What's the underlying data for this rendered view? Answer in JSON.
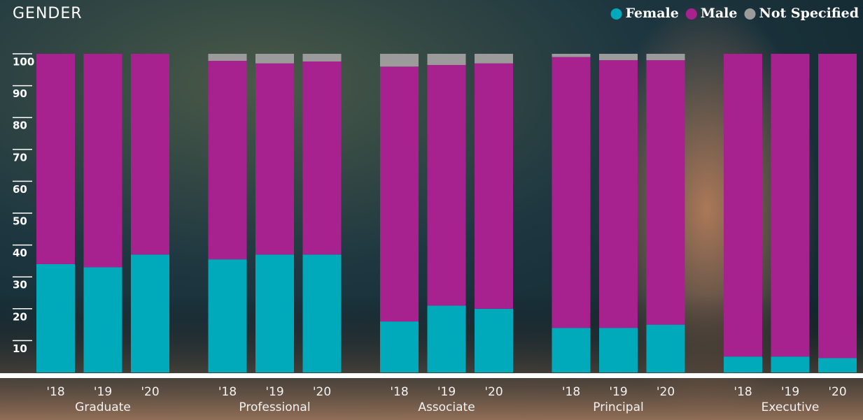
{
  "chart_data": {
    "type": "stacked_bar",
    "title": "GENDER",
    "categories": [
      "'18",
      "'19",
      "'20",
      "'18",
      "'19",
      "'20",
      "'18",
      "'19",
      "'20",
      "'18",
      "'19",
      "'20",
      "'18",
      "'19",
      "'20"
    ],
    "groups": [
      "Graduate",
      "Professional",
      "Associate",
      "Principal",
      "Executive"
    ],
    "series": [
      {
        "name": "Female",
        "color": "#00aabb",
        "values": [
          34,
          33,
          37,
          35.5,
          37,
          37,
          16,
          21,
          20,
          14,
          14,
          15,
          5,
          5,
          4.5
        ]
      },
      {
        "name": "Male",
        "color": "#a8228f",
        "values": [
          66,
          67,
          63,
          62.3,
          60,
          60.6,
          80,
          75.5,
          77,
          85,
          84,
          83,
          95,
          95,
          95.5
        ]
      },
      {
        "name": "Not Specified",
        "color": "#9b9b9b",
        "values": [
          0,
          0,
          0,
          2.2,
          3,
          2.4,
          4,
          3.5,
          3,
          1,
          2,
          2,
          0,
          0,
          0
        ]
      }
    ],
    "ylim": [
      0,
      100
    ],
    "yticks": [
      10,
      20,
      30,
      40,
      50,
      60,
      70,
      80,
      90,
      100
    ],
    "legend": "top-right"
  }
}
